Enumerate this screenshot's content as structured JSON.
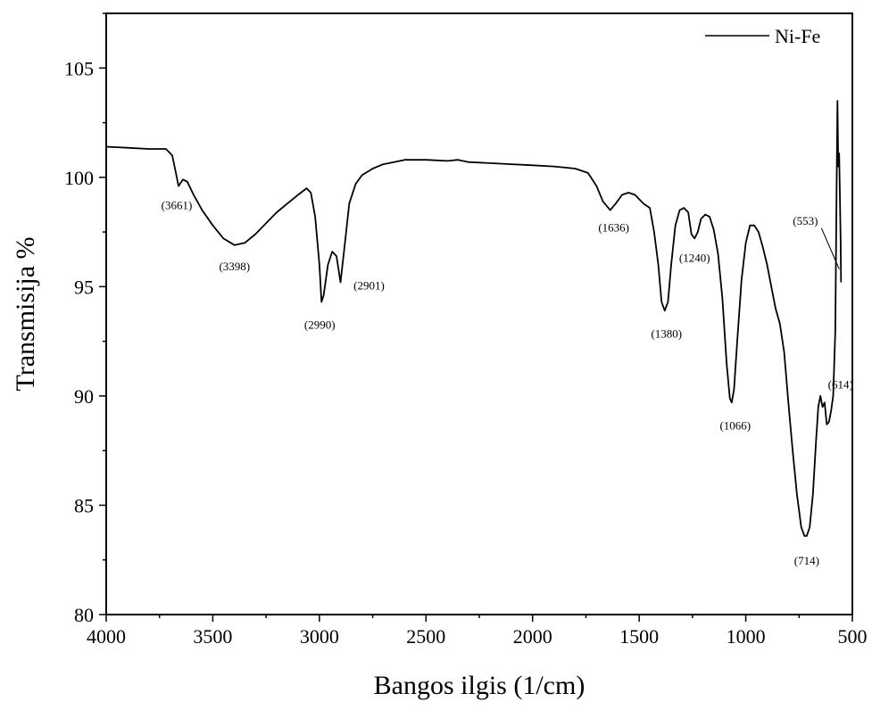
{
  "chart_data": {
    "type": "line",
    "title": "",
    "xlabel": "Bangos ilgis (1/cm)",
    "ylabel": "Transmisija %",
    "xlim": [
      4000,
      500
    ],
    "ylim": [
      80,
      107.5
    ],
    "x_reversed": true,
    "x_ticks": [
      4000,
      3500,
      3000,
      2500,
      2000,
      1500,
      1000,
      500
    ],
    "y_ticks": [
      80,
      85,
      90,
      95,
      100,
      105
    ],
    "grid": false,
    "legend": {
      "position": "top-right",
      "entries": [
        "Ni-Fe"
      ]
    },
    "series": [
      {
        "name": "Ni-Fe",
        "color": "#000000",
        "points": [
          [
            4000,
            101.4
          ],
          [
            3900,
            101.35
          ],
          [
            3800,
            101.3
          ],
          [
            3720,
            101.3
          ],
          [
            3690,
            101.0
          ],
          [
            3675,
            100.3
          ],
          [
            3661,
            99.6
          ],
          [
            3640,
            99.9
          ],
          [
            3620,
            99.8
          ],
          [
            3590,
            99.2
          ],
          [
            3550,
            98.5
          ],
          [
            3500,
            97.8
          ],
          [
            3450,
            97.2
          ],
          [
            3398,
            96.9
          ],
          [
            3350,
            97.0
          ],
          [
            3300,
            97.4
          ],
          [
            3250,
            97.9
          ],
          [
            3200,
            98.4
          ],
          [
            3150,
            98.8
          ],
          [
            3100,
            99.2
          ],
          [
            3060,
            99.5
          ],
          [
            3040,
            99.3
          ],
          [
            3020,
            98.2
          ],
          [
            3000,
            96.0
          ],
          [
            2990,
            94.3
          ],
          [
            2980,
            94.6
          ],
          [
            2960,
            96.0
          ],
          [
            2940,
            96.6
          ],
          [
            2920,
            96.4
          ],
          [
            2901,
            95.2
          ],
          [
            2880,
            97.0
          ],
          [
            2860,
            98.8
          ],
          [
            2830,
            99.7
          ],
          [
            2800,
            100.1
          ],
          [
            2750,
            100.4
          ],
          [
            2700,
            100.6
          ],
          [
            2650,
            100.7
          ],
          [
            2600,
            100.8
          ],
          [
            2500,
            100.8
          ],
          [
            2400,
            100.75
          ],
          [
            2350,
            100.8
          ],
          [
            2300,
            100.7
          ],
          [
            2200,
            100.65
          ],
          [
            2100,
            100.6
          ],
          [
            2000,
            100.55
          ],
          [
            1900,
            100.5
          ],
          [
            1800,
            100.4
          ],
          [
            1740,
            100.2
          ],
          [
            1700,
            99.6
          ],
          [
            1670,
            98.9
          ],
          [
            1636,
            98.5
          ],
          [
            1610,
            98.8
          ],
          [
            1580,
            99.2
          ],
          [
            1550,
            99.3
          ],
          [
            1520,
            99.2
          ],
          [
            1480,
            98.8
          ],
          [
            1450,
            98.6
          ],
          [
            1430,
            97.5
          ],
          [
            1410,
            96.0
          ],
          [
            1395,
            94.3
          ],
          [
            1380,
            93.9
          ],
          [
            1365,
            94.3
          ],
          [
            1350,
            96.0
          ],
          [
            1330,
            97.8
          ],
          [
            1310,
            98.5
          ],
          [
            1290,
            98.6
          ],
          [
            1270,
            98.4
          ],
          [
            1255,
            97.4
          ],
          [
            1240,
            97.2
          ],
          [
            1225,
            97.5
          ],
          [
            1210,
            98.1
          ],
          [
            1190,
            98.3
          ],
          [
            1170,
            98.2
          ],
          [
            1150,
            97.6
          ],
          [
            1130,
            96.5
          ],
          [
            1110,
            94.5
          ],
          [
            1090,
            91.5
          ],
          [
            1075,
            89.9
          ],
          [
            1066,
            89.7
          ],
          [
            1055,
            90.3
          ],
          [
            1040,
            92.5
          ],
          [
            1020,
            95.3
          ],
          [
            1000,
            97.0
          ],
          [
            980,
            97.8
          ],
          [
            960,
            97.8
          ],
          [
            940,
            97.5
          ],
          [
            920,
            96.8
          ],
          [
            900,
            96.0
          ],
          [
            880,
            95.0
          ],
          [
            860,
            94.0
          ],
          [
            840,
            93.3
          ],
          [
            820,
            92.0
          ],
          [
            800,
            89.7
          ],
          [
            780,
            87.5
          ],
          [
            760,
            85.5
          ],
          [
            740,
            84.0
          ],
          [
            725,
            83.6
          ],
          [
            714,
            83.6
          ],
          [
            700,
            84.0
          ],
          [
            685,
            85.5
          ],
          [
            670,
            88.0
          ],
          [
            660,
            89.5
          ],
          [
            650,
            90.0
          ],
          [
            640,
            89.5
          ],
          [
            630,
            89.7
          ],
          [
            620,
            88.7
          ],
          [
            610,
            88.8
          ],
          [
            600,
            89.3
          ],
          [
            590,
            90.0
          ],
          [
            580,
            93.0
          ],
          [
            575,
            98.5
          ],
          [
            570,
            103.5
          ],
          [
            566,
            100.5
          ],
          [
            562,
            101.1
          ],
          [
            558,
            99.0
          ],
          [
            555,
            97.0
          ],
          [
            553,
            95.2
          ]
        ]
      }
    ],
    "annotations": [
      {
        "label": "(3661)",
        "x": 3661,
        "y": 99.6
      },
      {
        "label": "(3398)",
        "x": 3398,
        "y": 96.9
      },
      {
        "label": "(2990)",
        "x": 2990,
        "y": 94.3
      },
      {
        "label": "(2901)",
        "x": 2901,
        "y": 95.2
      },
      {
        "label": "(1636)",
        "x": 1636,
        "y": 98.5
      },
      {
        "label": "(1380)",
        "x": 1380,
        "y": 93.9
      },
      {
        "label": "(1240)",
        "x": 1240,
        "y": 97.2
      },
      {
        "label": "(1066)",
        "x": 1066,
        "y": 89.7
      },
      {
        "label": "(714)",
        "x": 714,
        "y": 83.6
      },
      {
        "label": "(614)",
        "x": 614,
        "y": 88.8
      },
      {
        "label": "(553)",
        "x": 553,
        "y": 95.8
      }
    ]
  }
}
